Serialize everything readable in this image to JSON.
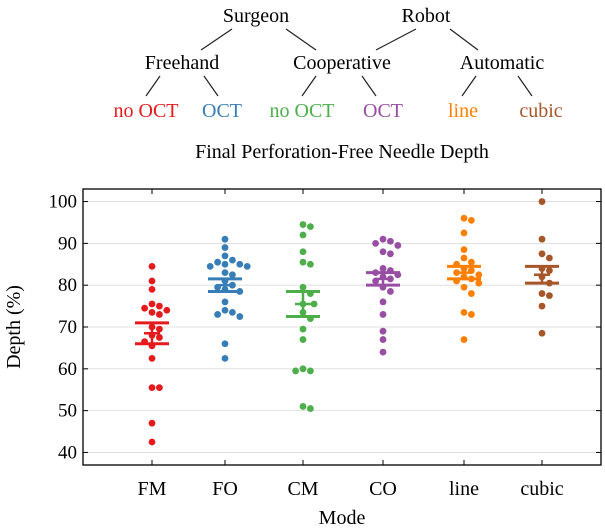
{
  "hierarchy": {
    "root_labels": [
      "Surgeon",
      "Robot"
    ],
    "mid_labels": [
      "Freehand",
      "Cooperative",
      "Automatic"
    ],
    "leaf_labels": [
      "no OCT",
      "OCT",
      "no OCT",
      "OCT",
      "line",
      "cubic"
    ]
  },
  "colors": {
    "FM": "#e41a1c",
    "FO": "#377eb8",
    "CM": "#4daf4a",
    "CO": "#984ea3",
    "line": "#ff7f00",
    "cubic": "#a65628",
    "tree": "#222222",
    "axis": "#000000"
  },
  "chart_data": {
    "type": "scatter",
    "title": "Final Perforation-Free Needle Depth",
    "xlabel": "Mode",
    "ylabel": "Depth (%)",
    "ylim": [
      37,
      103
    ],
    "yticks": [
      40,
      50,
      60,
      70,
      80,
      90,
      100
    ],
    "categories": [
      "FM",
      "FO",
      "CM",
      "CO",
      "line",
      "cubic"
    ],
    "grid": "y-major",
    "legend": "none",
    "series": [
      {
        "category": "FM",
        "values": [
          84.5,
          81,
          79,
          75.5,
          75,
          74.5,
          74,
          73.5,
          73,
          70,
          69.5,
          68,
          67.5,
          66.5,
          65.5,
          62.5,
          55.5,
          55.5,
          47,
          42.5
        ],
        "mean_line": 68.5,
        "ci": [
          66,
          71
        ]
      },
      {
        "category": "FO",
        "values": [
          91,
          89,
          87,
          86,
          85.5,
          85,
          85,
          84.5,
          84.5,
          83,
          82.5,
          81,
          80,
          79.5,
          79,
          78.5,
          76,
          74,
          73.5,
          73,
          72.5,
          66,
          62.5
        ],
        "mean_line": 80,
        "ci": [
          78.5,
          81.5
        ]
      },
      {
        "category": "CM",
        "values": [
          94.5,
          94,
          92,
          88,
          85.5,
          85,
          79.5,
          78,
          75.5,
          75.5,
          73.5,
          72,
          69.5,
          67,
          60,
          59.5,
          59.5,
          51,
          50.5
        ],
        "mean_line": 75.5,
        "ci": [
          72.5,
          78.5
        ]
      },
      {
        "category": "CO",
        "values": [
          91,
          90.5,
          90,
          89.5,
          88,
          87.5,
          84,
          83.5,
          83,
          82.5,
          82,
          81.5,
          81,
          79.5,
          78.5,
          76,
          73,
          69,
          67,
          64
        ],
        "mean_line": 81.5,
        "ci": [
          80,
          83
        ]
      },
      {
        "category": "line",
        "values": [
          96,
          95.5,
          92.5,
          88.5,
          86.5,
          85.5,
          85,
          84,
          83.5,
          83,
          82.5,
          82,
          81.5,
          81,
          80.5,
          79.5,
          78,
          73.5,
          73,
          67
        ],
        "mean_line": 83,
        "ci": [
          81.5,
          84.5
        ]
      },
      {
        "category": "cubic",
        "values": [
          100,
          91,
          87.5,
          86.5,
          84,
          83.5,
          82,
          80.5,
          78,
          77.5,
          75,
          68.5
        ],
        "mean_line": 82.5,
        "ci": [
          80.5,
          84.5
        ]
      }
    ]
  }
}
